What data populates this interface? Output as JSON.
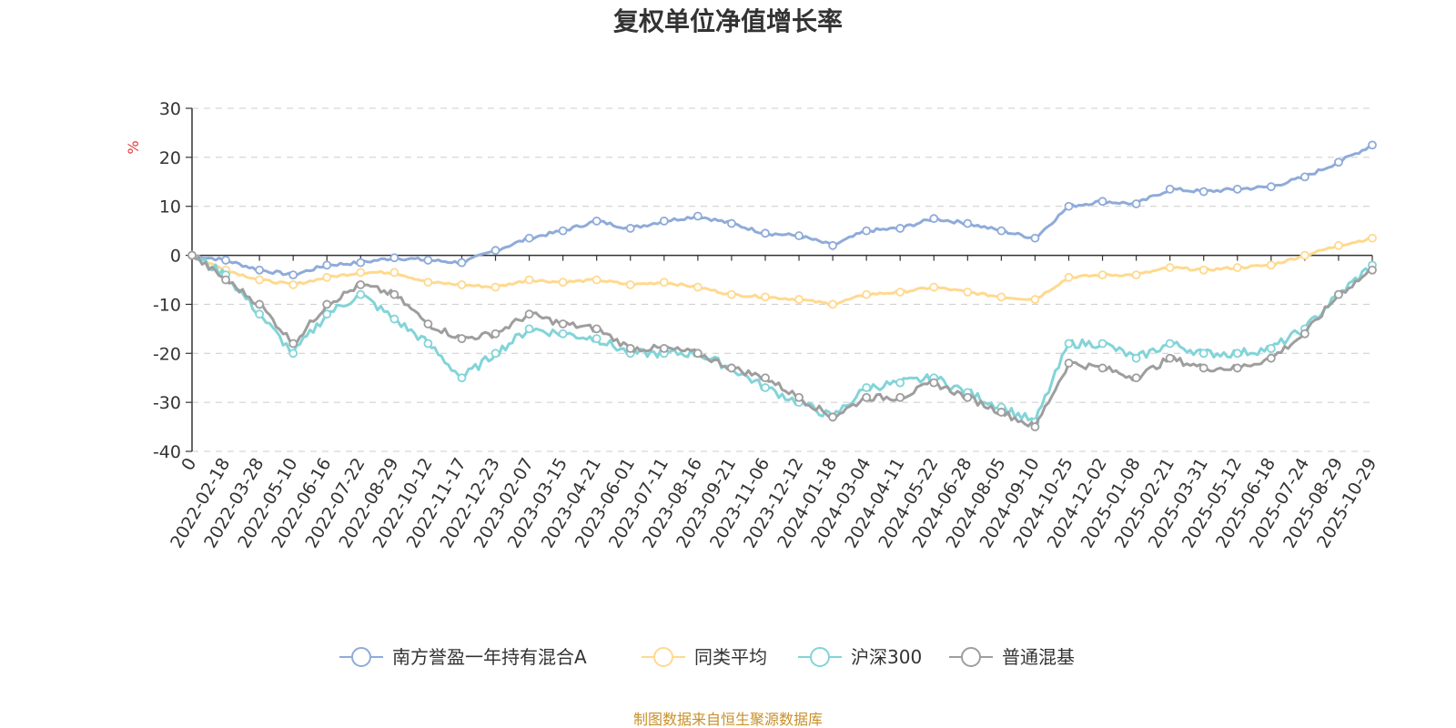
{
  "chart_data": {
    "type": "line",
    "title": "复权单位净值增长率",
    "ylabel": "%",
    "ylim": [
      -40,
      30
    ],
    "yticks": [
      30,
      20,
      10,
      0,
      -10,
      -20,
      -30,
      -40
    ],
    "grid": true,
    "legend_position": "bottom",
    "categories": [
      "0",
      "2022-02-18",
      "2022-03-28",
      "2022-05-10",
      "2022-06-16",
      "2022-07-22",
      "2022-08-29",
      "2022-10-12",
      "2022-11-17",
      "2022-12-23",
      "2023-02-07",
      "2023-03-15",
      "2023-04-21",
      "2023-06-01",
      "2023-07-11",
      "2023-08-16",
      "2023-09-21",
      "2023-11-06",
      "2023-12-12",
      "2024-01-18",
      "2024-03-04",
      "2024-04-11",
      "2024-05-22",
      "2024-06-28",
      "2024-08-05",
      "2024-09-10",
      "2024-10-25",
      "2024-12-02",
      "2025-01-08",
      "2025-02-21",
      "2025-03-31",
      "2025-05-12",
      "2025-06-18",
      "2025-07-24",
      "2025-08-29",
      "2025-10-29"
    ],
    "series": [
      {
        "name": "南方誉盈一年持有混合A",
        "color": "#8fabd9",
        "values": [
          0,
          -1,
          -3,
          -4,
          -2,
          -1.5,
          -0.5,
          -1,
          -1.5,
          1,
          3.5,
          5,
          7,
          5.5,
          7,
          8,
          6.5,
          4.5,
          4,
          2,
          5,
          5.5,
          7.5,
          6.5,
          5,
          3.5,
          10,
          11,
          10.5,
          13.5,
          13,
          13.5,
          14,
          16,
          19,
          22.5
        ]
      },
      {
        "name": "同类平均",
        "color": "#ffd98f",
        "values": [
          0,
          -3,
          -5,
          -6,
          -4.5,
          -3.5,
          -3.5,
          -5.5,
          -6,
          -6.5,
          -5,
          -5.5,
          -5,
          -6,
          -5.5,
          -6.5,
          -8,
          -8.5,
          -9,
          -10,
          -8,
          -7.5,
          -6.5,
          -7.5,
          -8.5,
          -9,
          -4.5,
          -4,
          -4,
          -2.5,
          -3,
          -2.5,
          -2,
          0,
          2,
          3.5
        ]
      },
      {
        "name": "沪深300",
        "color": "#82d4d8",
        "values": [
          0,
          -4,
          -12,
          -20,
          -12,
          -8,
          -13,
          -18,
          -25,
          -20,
          -15,
          -16,
          -17,
          -20,
          -20,
          -20,
          -23,
          -27,
          -30,
          -33,
          -27,
          -26,
          -25,
          -28,
          -31,
          -34,
          -18,
          -18,
          -21,
          -18,
          -20,
          -20,
          -19,
          -15,
          -8,
          -2
        ]
      },
      {
        "name": "普通混基",
        "color": "#9e9e9e",
        "values": [
          0,
          -5,
          -10,
          -18,
          -10,
          -6,
          -8,
          -14,
          -17,
          -16,
          -12,
          -14,
          -15,
          -19,
          -19,
          -20,
          -23,
          -25,
          -29,
          -33,
          -29,
          -29,
          -26,
          -29,
          -32,
          -35,
          -22,
          -23,
          -25,
          -21,
          -23,
          -23,
          -21,
          -16,
          -8,
          -3
        ]
      }
    ]
  },
  "source_note": "制图数据来自恒生聚源数据库"
}
